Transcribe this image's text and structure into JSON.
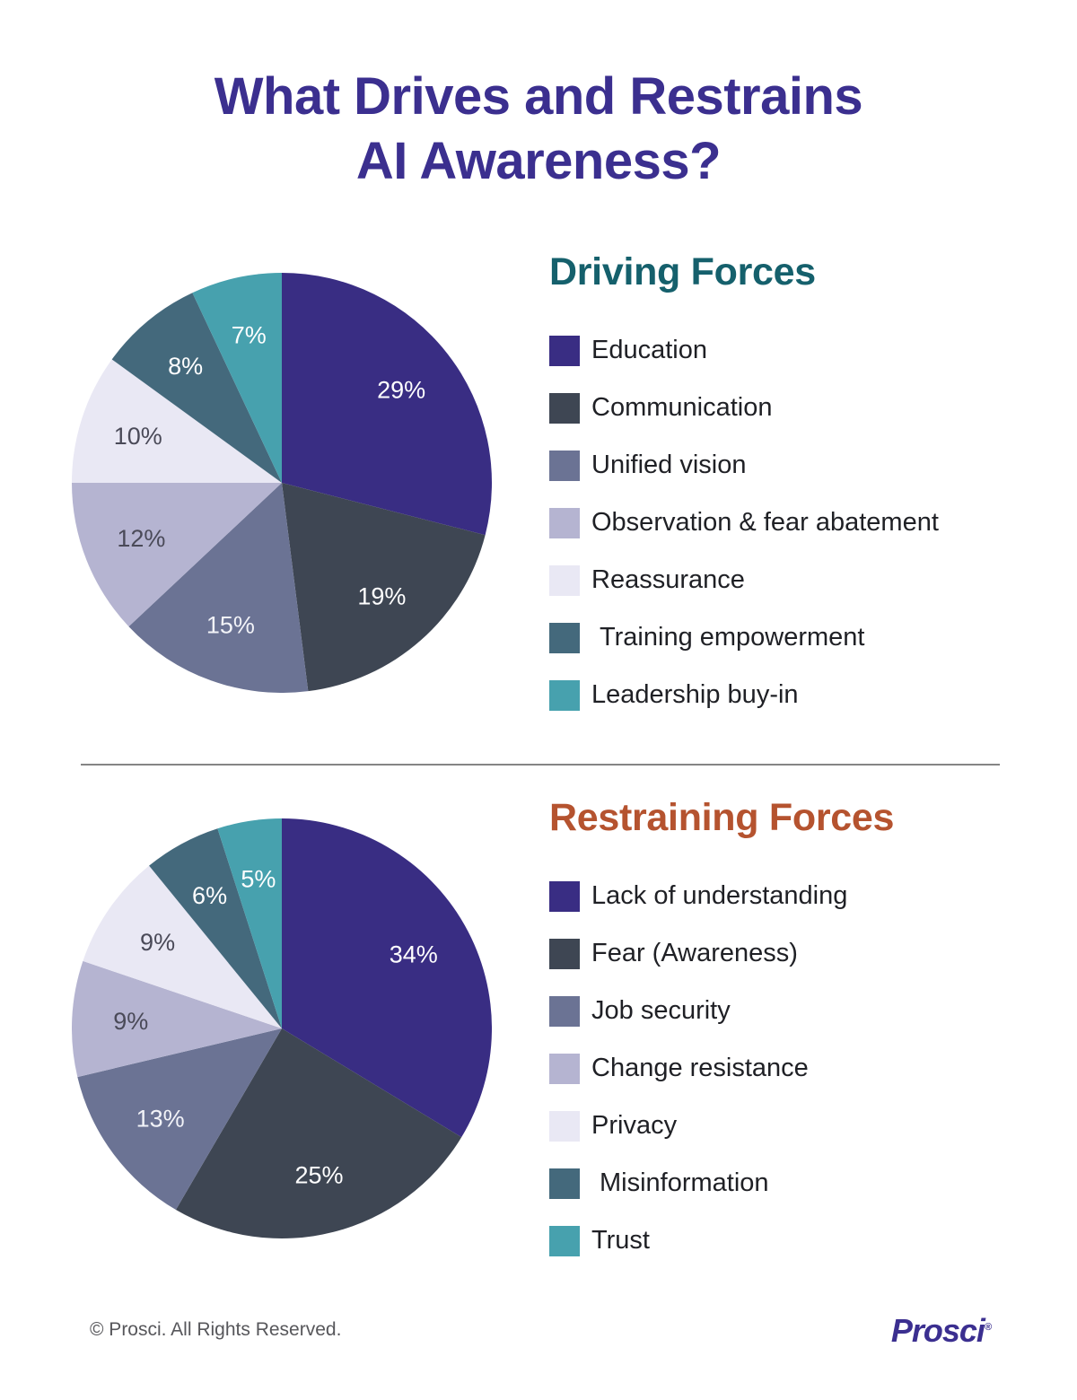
{
  "title": {
    "line1": "What Drives and Restrains",
    "line2": "AI Awareness?",
    "color": "#3b2f8f"
  },
  "sections": [
    {
      "heading": "Driving Forces",
      "heading_color": "#15606c",
      "legend": [
        {
          "label": "Education",
          "color": "#392d83"
        },
        {
          "label": "Communication",
          "color": "#3e4653"
        },
        {
          "label": "Unified vision",
          "color": "#6b7394"
        },
        {
          "label": "Observation & fear abatement",
          "color": "#b5b4d1"
        },
        {
          "label": "Reassurance",
          "color": "#e9e8f4"
        },
        {
          "label": "Training empowerment",
          "color": "#44697c"
        },
        {
          "label": "Leadership buy-in",
          "color": "#47a1ae"
        }
      ]
    },
    {
      "heading": "Restraining Forces",
      "heading_color": "#b5532f",
      "legend": [
        {
          "label": "Lack of understanding",
          "color": "#392d83"
        },
        {
          "label": "Fear (Awareness)",
          "color": "#3e4653"
        },
        {
          "label": "Job security",
          "color": "#6b7394"
        },
        {
          "label": "Change resistance",
          "color": "#b5b4d1"
        },
        {
          "label": "Privacy",
          "color": "#e9e8f4"
        },
        {
          "label": "Misinformation",
          "color": "#44697c"
        },
        {
          "label": "Trust",
          "color": "#47a1ae"
        }
      ]
    }
  ],
  "chart_data": [
    {
      "type": "pie",
      "title": "Driving Forces",
      "categories": [
        "Education",
        "Communication",
        "Unified vision",
        "Observation & fear abatement",
        "Reassurance",
        "Training empowerment",
        "Leadership buy-in"
      ],
      "values": [
        29,
        19,
        15,
        12,
        10,
        8,
        7
      ],
      "pct_labels": [
        "29%",
        "19%",
        "15%",
        "12%",
        "10%",
        "8%",
        "7%"
      ],
      "colors": [
        "#392d83",
        "#3e4653",
        "#6b7394",
        "#b5b4d1",
        "#e9e8f4",
        "#44697c",
        "#47a1ae"
      ],
      "pct_label_colors": [
        "#ffffff",
        "#ffffff",
        "#f2f3f8",
        "#4a4a58",
        "#4a4a58",
        "#ffffff",
        "#ffffff"
      ],
      "start_angle": "12 o'clock",
      "direction": "clockwise",
      "legend_position": "right"
    },
    {
      "type": "pie",
      "title": "Restraining Forces",
      "categories": [
        "Lack of understanding",
        "Fear (Awareness)",
        "Job security",
        "Change resistance",
        "Privacy",
        "Misinformation",
        "Trust"
      ],
      "values": [
        34,
        25,
        13,
        9,
        9,
        6,
        5
      ],
      "pct_labels": [
        "34%",
        "25%",
        "13%",
        "9%",
        "9%",
        "6%",
        "5%"
      ],
      "colors": [
        "#392d83",
        "#3e4653",
        "#6b7394",
        "#b5b4d1",
        "#e9e8f4",
        "#44697c",
        "#47a1ae"
      ],
      "pct_label_colors": [
        "#ffffff",
        "#ffffff",
        "#f2f3f8",
        "#4a4a58",
        "#4a4a58",
        "#ffffff",
        "#ffffff"
      ],
      "start_angle": "12 o'clock",
      "direction": "clockwise",
      "legend_position": "right"
    }
  ],
  "divider_color": "#858585",
  "footer": {
    "copyright": "© Prosci. All Rights Reserved.",
    "logo_text": "Prosci",
    "logo_reg_mark": "®",
    "logo_color": "#3b2f90"
  }
}
